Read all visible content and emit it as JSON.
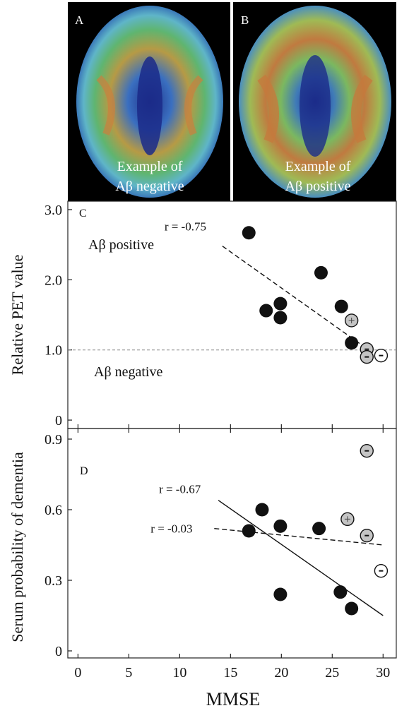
{
  "panels": {
    "A": {
      "letter": "A",
      "caption_line1": "Example of",
      "caption_line2": "Aβ negative"
    },
    "B": {
      "letter": "B",
      "caption_line1": "Example of",
      "caption_line2": "Aβ positive"
    }
  },
  "chart_data": [
    {
      "type": "scatter",
      "panel_label": "C",
      "ylabel": "Relative PET value",
      "xlabel": "",
      "xlim": [
        -1,
        31.3
      ],
      "ylim": [
        -0.12,
        3.12
      ],
      "yticks": [
        0,
        1.0,
        2.0,
        3.0
      ],
      "yticklabels": [
        "0",
        "1.0",
        "2.0",
        "3.0"
      ],
      "threshold": 1.0,
      "region_labels": {
        "above": "Aβ positive",
        "below": "Aβ negative"
      },
      "points": [
        {
          "x": 16.8,
          "y": 2.67,
          "type": "black"
        },
        {
          "x": 18.5,
          "y": 1.56,
          "type": "black"
        },
        {
          "x": 19.9,
          "y": 1.66,
          "type": "black"
        },
        {
          "x": 19.9,
          "y": 1.46,
          "type": "black"
        },
        {
          "x": 23.9,
          "y": 2.1,
          "type": "black"
        },
        {
          "x": 25.9,
          "y": 1.62,
          "type": "black"
        },
        {
          "x": 26.9,
          "y": 1.1,
          "type": "black"
        },
        {
          "x": 26.9,
          "y": 1.42,
          "type": "gray",
          "symbol": "+"
        },
        {
          "x": 28.4,
          "y": 1.01,
          "type": "gray",
          "symbol": "-"
        },
        {
          "x": 28.4,
          "y": 0.9,
          "type": "gray",
          "symbol": "-"
        },
        {
          "x": 29.8,
          "y": 0.92,
          "type": "white",
          "symbol": "-"
        }
      ],
      "lines": [
        {
          "x1": 14.2,
          "y1": 2.48,
          "x2": 28.0,
          "y2": 1.06,
          "style": "dashed",
          "label": "r = -0.75"
        }
      ]
    },
    {
      "type": "scatter",
      "panel_label": "D",
      "ylabel": "Serum probability of dementia",
      "xlabel": "MMSE",
      "xlim": [
        -1,
        31.3
      ],
      "ylim": [
        -0.03,
        0.945
      ],
      "yticks": [
        0,
        0.3,
        0.6,
        0.9
      ],
      "yticklabels": [
        "0",
        "0.3",
        "0.6",
        "0.9"
      ],
      "xticks": [
        0,
        5,
        10,
        15,
        20,
        25,
        30
      ],
      "xticklabels": [
        "0",
        "5",
        "10",
        "15",
        "20",
        "25",
        "30"
      ],
      "points": [
        {
          "x": 16.8,
          "y": 0.51,
          "type": "black"
        },
        {
          "x": 18.1,
          "y": 0.6,
          "type": "black"
        },
        {
          "x": 19.9,
          "y": 0.53,
          "type": "black"
        },
        {
          "x": 19.9,
          "y": 0.24,
          "type": "black"
        },
        {
          "x": 23.7,
          "y": 0.52,
          "type": "black"
        },
        {
          "x": 25.8,
          "y": 0.25,
          "type": "black"
        },
        {
          "x": 26.9,
          "y": 0.18,
          "type": "black"
        },
        {
          "x": 26.5,
          "y": 0.56,
          "type": "gray",
          "symbol": "+"
        },
        {
          "x": 28.4,
          "y": 0.85,
          "type": "gray",
          "symbol": "-"
        },
        {
          "x": 28.4,
          "y": 0.49,
          "type": "gray",
          "symbol": "-"
        },
        {
          "x": 29.8,
          "y": 0.34,
          "type": "white",
          "symbol": "-"
        }
      ],
      "lines": [
        {
          "x1": 13.8,
          "y1": 0.64,
          "x2": 30.0,
          "y2": 0.15,
          "style": "solid",
          "label": "r = -0.67"
        },
        {
          "x1": 13.4,
          "y1": 0.52,
          "x2": 30.0,
          "y2": 0.45,
          "style": "dashed",
          "label": "r = -0.03"
        }
      ]
    }
  ]
}
